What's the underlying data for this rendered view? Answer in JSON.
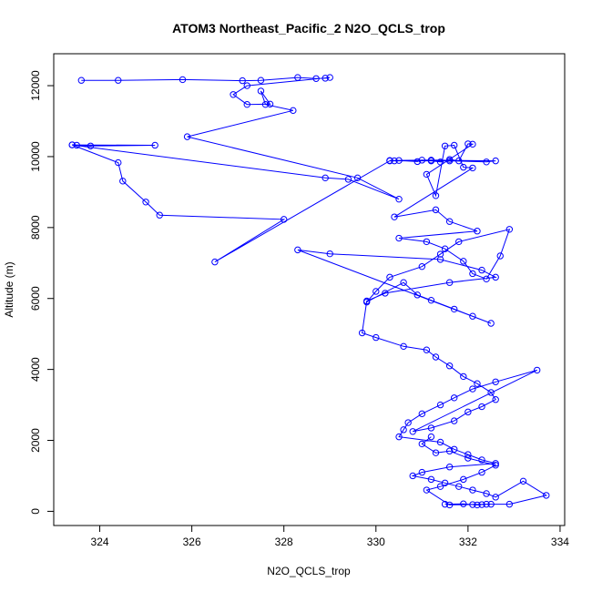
{
  "chart_data": {
    "type": "scatter",
    "title": "ATOM3 Northeast_Pacific_2 N2O_QCLS_trop",
    "xlabel": "N2O_QCLS_trop",
    "ylabel": "Altitude (m)",
    "xlim": [
      323,
      334.1
    ],
    "ylim": [
      -400,
      12900
    ],
    "x_ticks": [
      324,
      326,
      328,
      330,
      332,
      334
    ],
    "y_ticks": [
      0,
      2000,
      4000,
      6000,
      8000,
      10000,
      12000
    ],
    "grid": false,
    "legend": "none",
    "marker": "open-circle",
    "connected": true,
    "series": [
      {
        "color": "#0000ff",
        "x": [
          323.6,
          324.4,
          325.8,
          327.1,
          327.5,
          328.3,
          328.7,
          328.9,
          329.0,
          327.2,
          326.9,
          327.2,
          327.7,
          327.5,
          327.6,
          328.2,
          325.9,
          329.6,
          330.5,
          329.4,
          328.9,
          323.4,
          323.5,
          323.8,
          325.2,
          323.4,
          324.4,
          324.5,
          325.0,
          325.3,
          328.0,
          326.5,
          330.3,
          331.6,
          332.4,
          332.6,
          331.2,
          330.3,
          330.4,
          330.5,
          330.9,
          331.0,
          331.2,
          331.4,
          331.6,
          331.8,
          332.0,
          332.1,
          331.1,
          331.3,
          331.5,
          331.7,
          331.9,
          332.1,
          330.4,
          331.3,
          331.6,
          332.2,
          330.5,
          331.1,
          331.5,
          331.9,
          332.1,
          332.4,
          332.7,
          332.9,
          331.8,
          331.4,
          331.0,
          330.3,
          330.0,
          329.8,
          330.6,
          330.9,
          331.2,
          331.7,
          332.1,
          332.5,
          328.3,
          329.0,
          331.4,
          332.3,
          332.6,
          331.6,
          330.2,
          329.8,
          329.7,
          330.0,
          330.6,
          331.1,
          331.3,
          331.6,
          331.9,
          332.2,
          332.5,
          332.6,
          332.3,
          332.0,
          331.7,
          331.2,
          330.8,
          333.5,
          332.6,
          332.1,
          331.7,
          331.4,
          331.0,
          330.7,
          330.6,
          330.5,
          331.4,
          331.7,
          332.0,
          332.3,
          332.6,
          331.6,
          331.0,
          330.8,
          331.2,
          331.5,
          331.8,
          332.1,
          332.4,
          332.6,
          333.2,
          333.7,
          332.9,
          332.4,
          332.2,
          332.1,
          331.9,
          331.5,
          332.3,
          332.5,
          331.6,
          331.1,
          331.4,
          331.9,
          332.3,
          332.6,
          332.0,
          331.6,
          331.3,
          331.0,
          331.2
        ],
        "y": [
          12150,
          12150,
          12170,
          12140,
          12150,
          12230,
          12200,
          12210,
          12230,
          12000,
          11750,
          11470,
          11480,
          11850,
          11470,
          11300,
          10560,
          9400,
          8800,
          9360,
          9400,
          10330,
          10320,
          10300,
          10320,
          10330,
          9830,
          9310,
          8720,
          8350,
          8230,
          7030,
          9880,
          9880,
          9850,
          9880,
          9900,
          9890,
          9880,
          9890,
          9860,
          9900,
          9880,
          9850,
          9920,
          9880,
          10360,
          10350,
          9500,
          8900,
          10300,
          10320,
          9700,
          9680,
          8300,
          8500,
          8170,
          7900,
          7700,
          7600,
          7400,
          7050,
          6700,
          6550,
          7200,
          7950,
          7600,
          7250,
          6900,
          6600,
          6200,
          5900,
          6450,
          6100,
          5950,
          5700,
          5500,
          5300,
          7370,
          7260,
          7100,
          6800,
          6600,
          6450,
          6150,
          5930,
          5030,
          4900,
          4650,
          4550,
          4350,
          4100,
          3800,
          3600,
          3350,
          3150,
          2950,
          2800,
          2550,
          2350,
          2250,
          3980,
          3650,
          3450,
          3200,
          3000,
          2750,
          2500,
          2300,
          2100,
          1950,
          1750,
          1600,
          1450,
          1350,
          1250,
          1100,
          1000,
          900,
          800,
          700,
          600,
          500,
          400,
          850,
          450,
          200,
          200,
          180,
          190,
          210,
          200,
          190,
          200,
          180,
          600,
          700,
          900,
          1100,
          1300,
          1500,
          1700,
          1650,
          1900,
          2100
        ]
      }
    ]
  }
}
